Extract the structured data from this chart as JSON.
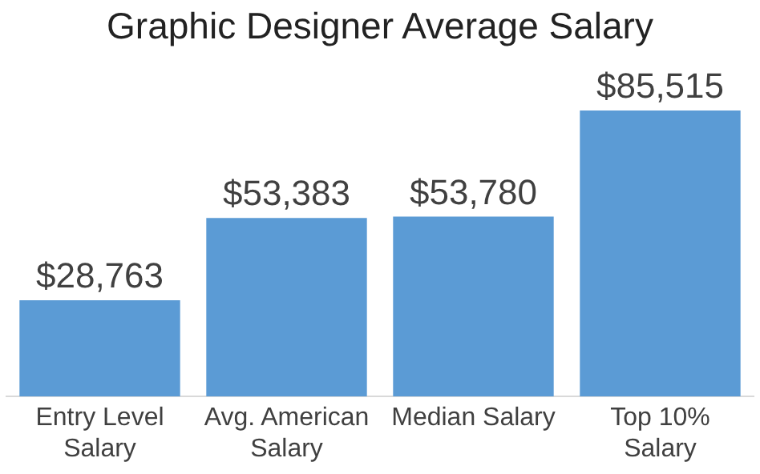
{
  "chart_data": {
    "type": "bar",
    "title": "Graphic Designer Average Salary",
    "categories": [
      "Entry Level Salary",
      "Avg. American Salary",
      "Median Salary",
      "Top 10% Salary"
    ],
    "values": [
      28763,
      53383,
      53780,
      85515
    ],
    "value_labels": [
      "$28,763",
      "$53,383",
      "$53,780",
      "$85,515"
    ],
    "color": "#5b9bd5",
    "grid": false,
    "legend": false
  }
}
